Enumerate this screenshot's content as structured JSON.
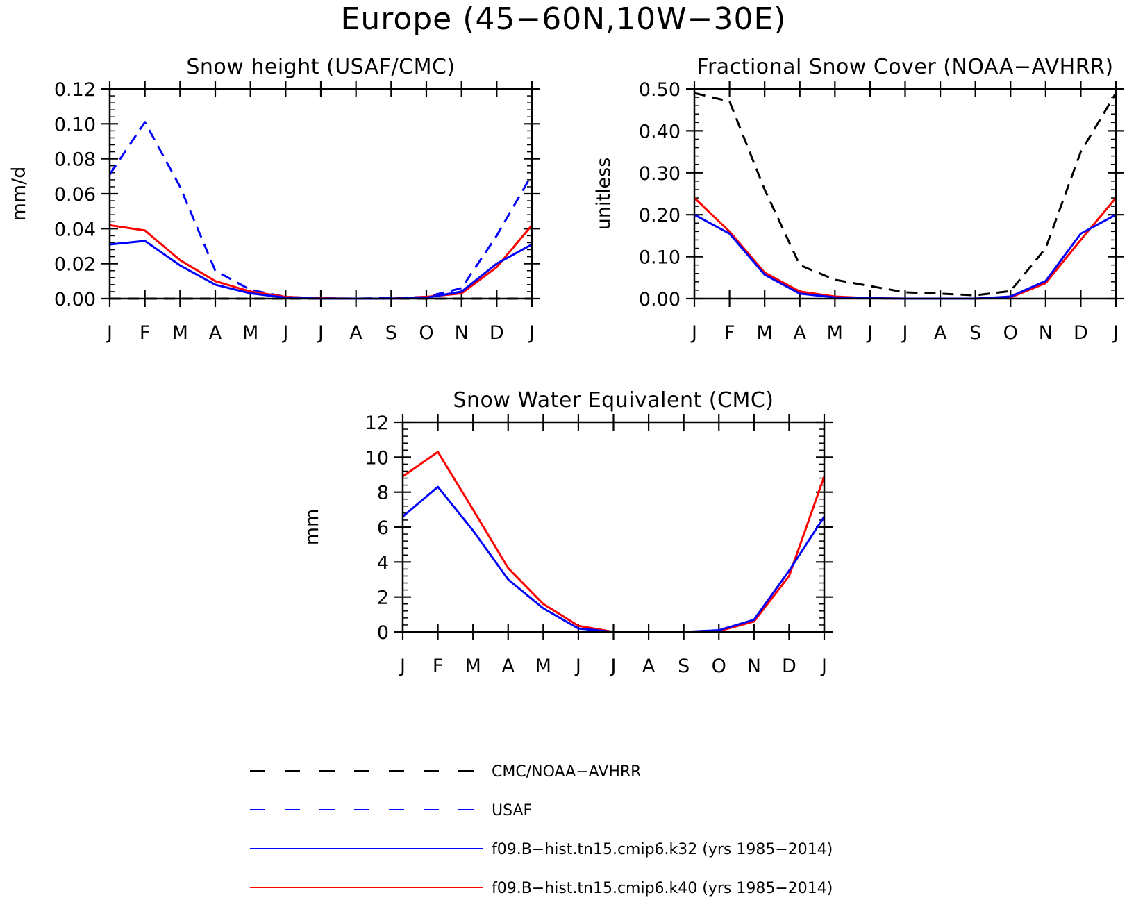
{
  "title": "Europe (45−60N,10W−30E)",
  "colors": {
    "obs": "#000000",
    "usaf": "#0000ff",
    "k32": "#0000ff",
    "k40": "#ff0000"
  },
  "chart_data": [
    {
      "id": "snow-height",
      "type": "line",
      "title": "Snow height (USAF/CMC)",
      "ylabel": "mm/d",
      "xlabel": "",
      "categories": [
        "J",
        "F",
        "M",
        "A",
        "M",
        "J",
        "J",
        "A",
        "S",
        "O",
        "N",
        "D",
        "J"
      ],
      "ylim": [
        0,
        0.12
      ],
      "yticks": [
        "0.00",
        "0.02",
        "0.04",
        "0.06",
        "0.08",
        "0.10",
        "0.12"
      ],
      "series": [
        {
          "key": "obs",
          "values": [
            0,
            0,
            0,
            0,
            0,
            0,
            0,
            0,
            0,
            0,
            0,
            0,
            0
          ]
        },
        {
          "key": "usaf",
          "values": [
            0.071,
            0.101,
            0.064,
            0.016,
            0.005,
            0.001,
            0.0002,
            0,
            0.0003,
            0.001,
            0.006,
            0.036,
            0.071
          ]
        },
        {
          "key": "k40",
          "values": [
            0.042,
            0.039,
            0.022,
            0.01,
            0.004,
            0.001,
            0.0002,
            0,
            0,
            0.001,
            0.003,
            0.018,
            0.042
          ]
        },
        {
          "key": "k32",
          "values": [
            0.031,
            0.033,
            0.019,
            0.008,
            0.003,
            0.0006,
            0,
            0,
            0,
            0.0005,
            0.004,
            0.02,
            0.031
          ]
        }
      ]
    },
    {
      "id": "snow-cover",
      "type": "line",
      "title": "Fractional Snow Cover (NOAA−AVHRR)",
      "ylabel": "unitless",
      "xlabel": "",
      "categories": [
        "J",
        "F",
        "M",
        "A",
        "M",
        "J",
        "J",
        "A",
        "S",
        "O",
        "N",
        "D",
        "J"
      ],
      "ylim": [
        0,
        0.5
      ],
      "yticks": [
        "0.00",
        "0.10",
        "0.20",
        "0.30",
        "0.40",
        "0.50"
      ],
      "series": [
        {
          "key": "obs",
          "values": [
            0.49,
            0.47,
            0.26,
            0.08,
            0.045,
            0.03,
            0.015,
            0.012,
            0.008,
            0.018,
            0.12,
            0.35,
            0.49
          ]
        },
        {
          "key": "k40",
          "values": [
            0.24,
            0.16,
            0.062,
            0.017,
            0.005,
            0.001,
            0,
            0,
            0,
            0.003,
            0.037,
            0.14,
            0.24
          ]
        },
        {
          "key": "k32",
          "values": [
            0.2,
            0.155,
            0.057,
            0.012,
            0.003,
            0.001,
            0,
            0,
            0,
            0.005,
            0.042,
            0.155,
            0.2
          ]
        }
      ]
    },
    {
      "id": "snow-water-equivalent",
      "type": "line",
      "title": "Snow Water Equivalent (CMC)",
      "ylabel": "mm",
      "xlabel": "",
      "categories": [
        "J",
        "F",
        "M",
        "A",
        "M",
        "J",
        "J",
        "A",
        "S",
        "O",
        "N",
        "D",
        "J"
      ],
      "ylim": [
        0,
        12
      ],
      "yticks": [
        "0",
        "2",
        "4",
        "6",
        "8",
        "10",
        "12"
      ],
      "series": [
        {
          "key": "obs",
          "values": [
            0,
            0,
            0,
            0,
            0,
            0,
            0,
            0,
            0,
            0,
            0,
            0,
            0
          ]
        },
        {
          "key": "k40",
          "values": [
            8.9,
            10.3,
            7.0,
            3.65,
            1.6,
            0.35,
            0,
            0,
            0,
            0.05,
            0.6,
            3.2,
            8.9
          ]
        },
        {
          "key": "k32",
          "values": [
            6.6,
            8.3,
            5.8,
            3.0,
            1.35,
            0.2,
            0,
            0,
            0,
            0.1,
            0.7,
            3.5,
            6.6
          ]
        }
      ]
    }
  ],
  "legend": [
    {
      "key": "obs",
      "label": "CMC/NOAA−AVHRR",
      "dash": true
    },
    {
      "key": "usaf",
      "label": "USAF",
      "dash": true
    },
    {
      "key": "k32",
      "label": "f09.B−hist.tn15.cmip6.k32 (yrs 1985−2014)",
      "dash": false
    },
    {
      "key": "k40",
      "label": "f09.B−hist.tn15.cmip6.k40 (yrs 1985−2014)",
      "dash": false
    }
  ]
}
